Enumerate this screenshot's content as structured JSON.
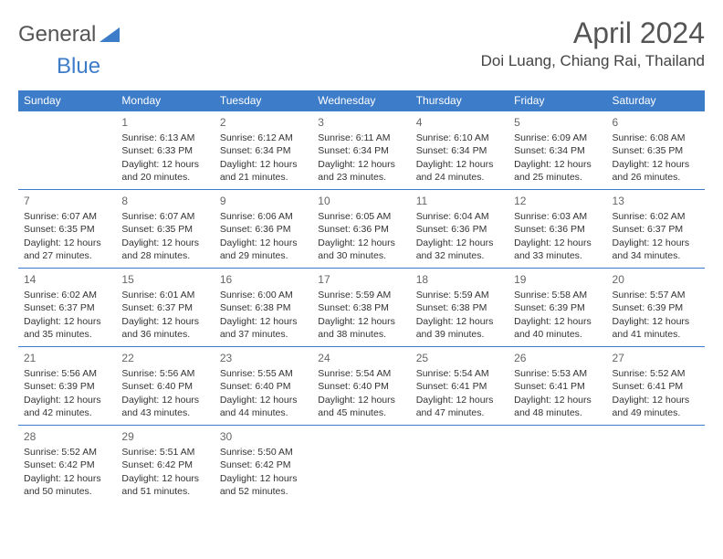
{
  "logo": {
    "text1": "General",
    "text2": "Blue"
  },
  "title": "April 2024",
  "location": "Doi Luang, Chiang Rai, Thailand",
  "colors": {
    "header_bg": "#3d7cc9",
    "header_text": "#ffffff",
    "border": "#3d7cc9",
    "page_bg": "#ffffff",
    "body_text": "#333333",
    "title_text": "#555555"
  },
  "dayNames": [
    "Sunday",
    "Monday",
    "Tuesday",
    "Wednesday",
    "Thursday",
    "Friday",
    "Saturday"
  ],
  "firstDayOffset": 1,
  "lastDay": 30,
  "days": {
    "1": {
      "sunrise": "6:13 AM",
      "sunset": "6:33 PM",
      "daylight": "12 hours and 20 minutes."
    },
    "2": {
      "sunrise": "6:12 AM",
      "sunset": "6:34 PM",
      "daylight": "12 hours and 21 minutes."
    },
    "3": {
      "sunrise": "6:11 AM",
      "sunset": "6:34 PM",
      "daylight": "12 hours and 23 minutes."
    },
    "4": {
      "sunrise": "6:10 AM",
      "sunset": "6:34 PM",
      "daylight": "12 hours and 24 minutes."
    },
    "5": {
      "sunrise": "6:09 AM",
      "sunset": "6:34 PM",
      "daylight": "12 hours and 25 minutes."
    },
    "6": {
      "sunrise": "6:08 AM",
      "sunset": "6:35 PM",
      "daylight": "12 hours and 26 minutes."
    },
    "7": {
      "sunrise": "6:07 AM",
      "sunset": "6:35 PM",
      "daylight": "12 hours and 27 minutes."
    },
    "8": {
      "sunrise": "6:07 AM",
      "sunset": "6:35 PM",
      "daylight": "12 hours and 28 minutes."
    },
    "9": {
      "sunrise": "6:06 AM",
      "sunset": "6:36 PM",
      "daylight": "12 hours and 29 minutes."
    },
    "10": {
      "sunrise": "6:05 AM",
      "sunset": "6:36 PM",
      "daylight": "12 hours and 30 minutes."
    },
    "11": {
      "sunrise": "6:04 AM",
      "sunset": "6:36 PM",
      "daylight": "12 hours and 32 minutes."
    },
    "12": {
      "sunrise": "6:03 AM",
      "sunset": "6:36 PM",
      "daylight": "12 hours and 33 minutes."
    },
    "13": {
      "sunrise": "6:02 AM",
      "sunset": "6:37 PM",
      "daylight": "12 hours and 34 minutes."
    },
    "14": {
      "sunrise": "6:02 AM",
      "sunset": "6:37 PM",
      "daylight": "12 hours and 35 minutes."
    },
    "15": {
      "sunrise": "6:01 AM",
      "sunset": "6:37 PM",
      "daylight": "12 hours and 36 minutes."
    },
    "16": {
      "sunrise": "6:00 AM",
      "sunset": "6:38 PM",
      "daylight": "12 hours and 37 minutes."
    },
    "17": {
      "sunrise": "5:59 AM",
      "sunset": "6:38 PM",
      "daylight": "12 hours and 38 minutes."
    },
    "18": {
      "sunrise": "5:59 AM",
      "sunset": "6:38 PM",
      "daylight": "12 hours and 39 minutes."
    },
    "19": {
      "sunrise": "5:58 AM",
      "sunset": "6:39 PM",
      "daylight": "12 hours and 40 minutes."
    },
    "20": {
      "sunrise": "5:57 AM",
      "sunset": "6:39 PM",
      "daylight": "12 hours and 41 minutes."
    },
    "21": {
      "sunrise": "5:56 AM",
      "sunset": "6:39 PM",
      "daylight": "12 hours and 42 minutes."
    },
    "22": {
      "sunrise": "5:56 AM",
      "sunset": "6:40 PM",
      "daylight": "12 hours and 43 minutes."
    },
    "23": {
      "sunrise": "5:55 AM",
      "sunset": "6:40 PM",
      "daylight": "12 hours and 44 minutes."
    },
    "24": {
      "sunrise": "5:54 AM",
      "sunset": "6:40 PM",
      "daylight": "12 hours and 45 minutes."
    },
    "25": {
      "sunrise": "5:54 AM",
      "sunset": "6:41 PM",
      "daylight": "12 hours and 47 minutes."
    },
    "26": {
      "sunrise": "5:53 AM",
      "sunset": "6:41 PM",
      "daylight": "12 hours and 48 minutes."
    },
    "27": {
      "sunrise": "5:52 AM",
      "sunset": "6:41 PM",
      "daylight": "12 hours and 49 minutes."
    },
    "28": {
      "sunrise": "5:52 AM",
      "sunset": "6:42 PM",
      "daylight": "12 hours and 50 minutes."
    },
    "29": {
      "sunrise": "5:51 AM",
      "sunset": "6:42 PM",
      "daylight": "12 hours and 51 minutes."
    },
    "30": {
      "sunrise": "5:50 AM",
      "sunset": "6:42 PM",
      "daylight": "12 hours and 52 minutes."
    }
  },
  "labels": {
    "sunrise": "Sunrise:",
    "sunset": "Sunset:",
    "daylight": "Daylight:"
  }
}
